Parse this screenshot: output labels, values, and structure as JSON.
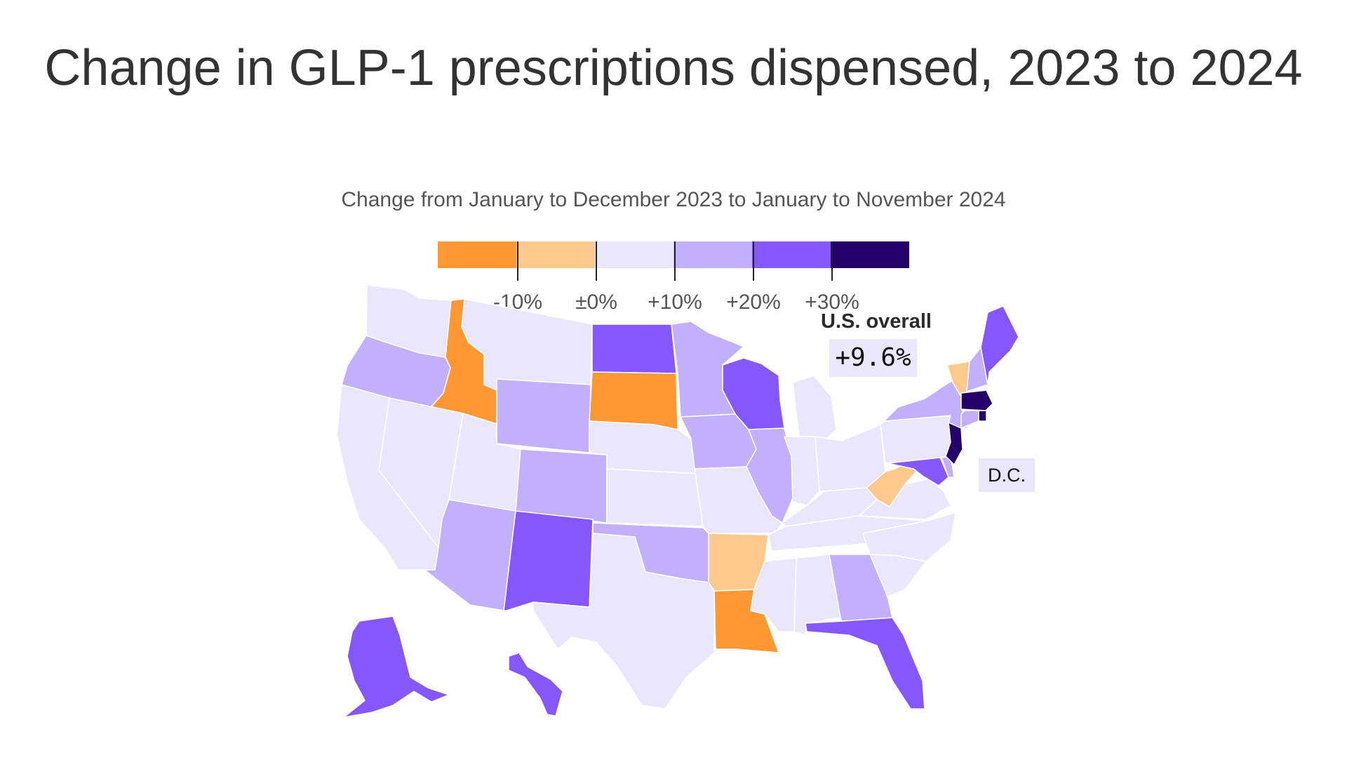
{
  "title": "Change in GLP-1 prescriptions dispensed, 2023 to 2024",
  "subtitle": "Change from January to December 2023 to January to November 2024",
  "legend": {
    "colors": [
      "#ff9833",
      "#ffc98d",
      "#eae6ff",
      "#c2b0ff",
      "#8557ff",
      "#23006a"
    ],
    "ticks": [
      "-10%",
      "±0%",
      "+10%",
      "+20%",
      "+30%"
    ]
  },
  "us_overall": {
    "label": "U.S. overall",
    "value": "+9.6%"
  },
  "dc_label": "D.C.",
  "states": {
    "WA": 2,
    "OR": 3,
    "ID": 0,
    "MT": 2,
    "WY": 3,
    "ND": 4,
    "SD": 0,
    "MN": 3,
    "WI": 4,
    "MI": 2,
    "CA": 2,
    "NV": 2,
    "UT": 2,
    "CO": 3,
    "NE": 2,
    "IA": 3,
    "IL": 3,
    "IN": 2,
    "OH": 2,
    "PA": 2,
    "AZ": 3,
    "NM": 4,
    "KS": 2,
    "MO": 2,
    "KY": 2,
    "WV": 1,
    "VA": 2,
    "MD": 4,
    "DE": 3,
    "NJ": 5,
    "OK": 3,
    "AR": 1,
    "TN": 2,
    "NC": 2,
    "SC": 2,
    "TX": 2,
    "LA": 0,
    "MS": 2,
    "AL": 2,
    "GA": 3,
    "FL": 4,
    "NY": 3,
    "VT": 1,
    "NH": 3,
    "ME": 4,
    "MA": 5,
    "CT": 3,
    "RI": 5,
    "AK": 4,
    "HI": 4,
    "DC": 2
  }
}
